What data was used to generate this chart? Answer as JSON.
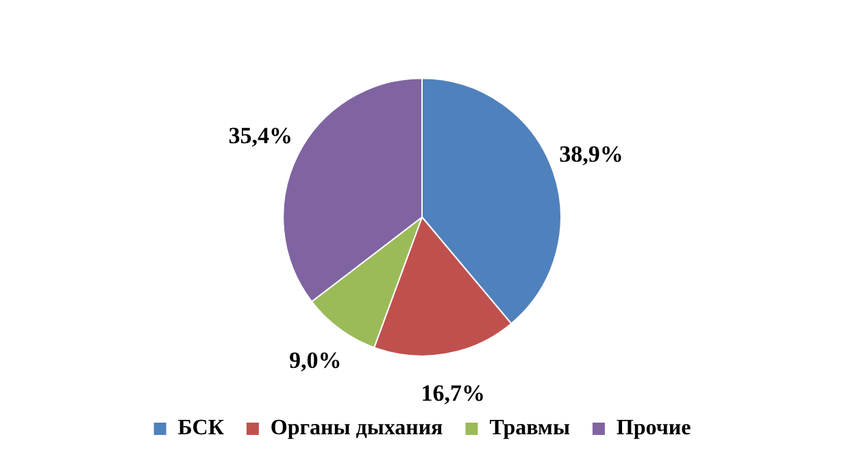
{
  "chart_data": {
    "type": "pie",
    "categories": [
      "БСК",
      "Органы дыхания",
      "Травмы",
      "Прочие"
    ],
    "values": [
      38.9,
      16.7,
      9.0,
      35.4
    ],
    "colors": [
      "#4f81bd",
      "#c0504d",
      "#9bbb59",
      "#8064a2"
    ],
    "value_labels": [
      "38,9%",
      "16,7%",
      "9,0%",
      "35,4%"
    ],
    "legend": "bottom"
  }
}
